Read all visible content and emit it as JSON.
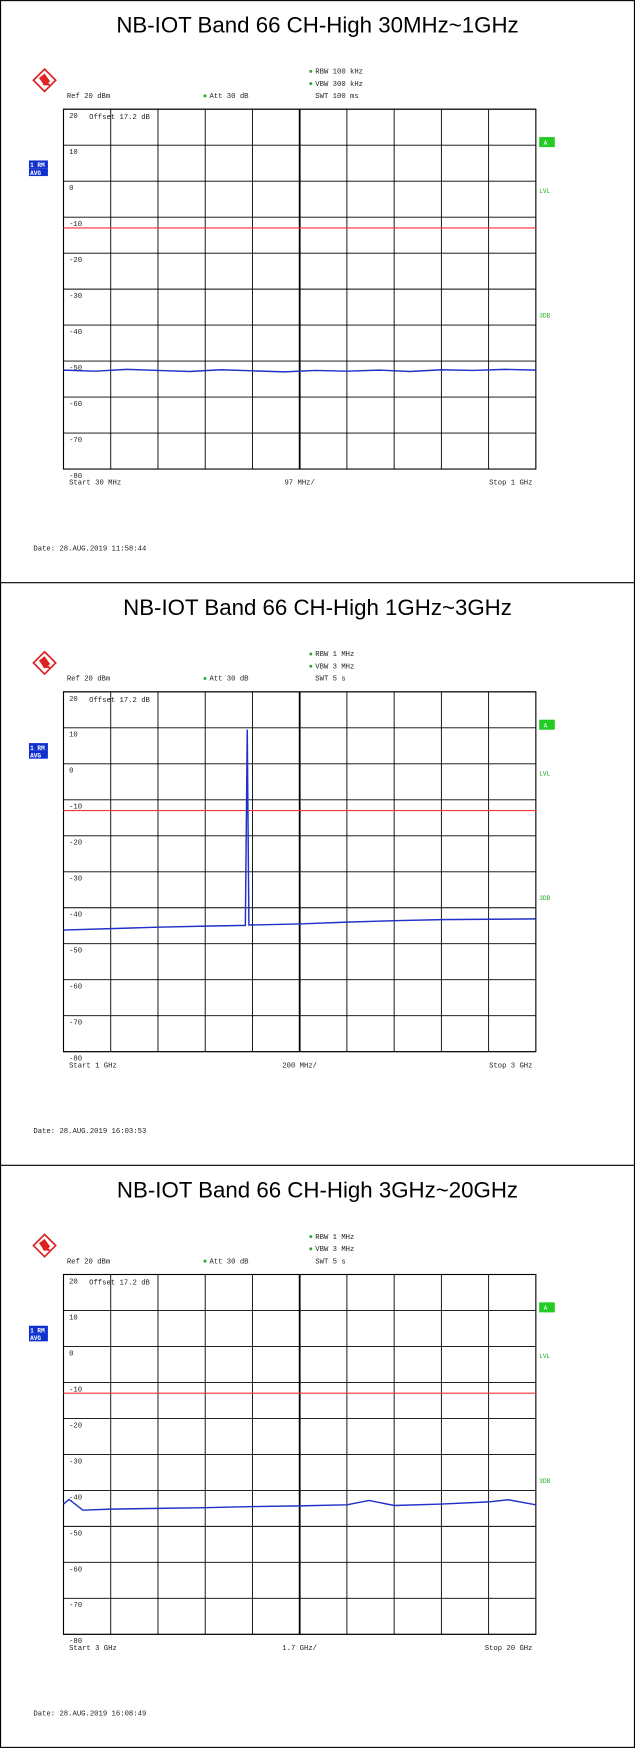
{
  "chart_data": [
    {
      "type": "line",
      "title": "NB-IOT Band 66 CH-High 30MHz~1GHz",
      "rbw": "RBW 100 kHz",
      "vbw": "VBW 300 kHz",
      "swt": "SWT 100 ms",
      "ref": "Ref  20 dBm",
      "att": "Att  30 dB",
      "offset": "Offset  17.2 dB",
      "trace_mode": [
        "1 RM",
        "AVG"
      ],
      "side_labels": [
        "A",
        "LVL",
        "3DB"
      ],
      "start_label": "Start  30 MHz",
      "span_label": "97 MHz/",
      "stop_label": "Stop  1 GHz",
      "date": "Date: 28.AUG.2019  11:58:44",
      "xlim": [
        30,
        1000
      ],
      "ylim": [
        -80,
        20
      ],
      "yticks": [
        20,
        10,
        0,
        -10,
        -20,
        -30,
        -40,
        -50,
        -60,
        -70,
        -80
      ],
      "limit_line": {
        "value": -13,
        "color": "#ff3333"
      },
      "x": [
        30,
        95,
        160,
        224,
        289,
        354,
        418,
        483,
        548,
        612,
        677,
        742,
        806,
        871,
        936,
        1000
      ],
      "series": [
        {
          "color": "#2030c8",
          "values": [
            -52.5,
            -52.8,
            -52.3,
            -52.6,
            -52.9,
            -52.4,
            -52.7,
            -53.0,
            -52.6,
            -52.8,
            -52.5,
            -52.9,
            -52.4,
            -52.6,
            -52.3,
            -52.5
          ]
        }
      ]
    },
    {
      "type": "line",
      "title": "NB-IOT Band 66 CH-High 1GHz~3GHz",
      "rbw": "RBW 1 MHz",
      "vbw": "VBW 3 MHz",
      "swt": "SWT 5 s",
      "ref": "Ref  20 dBm",
      "att": "Att  30 dB",
      "offset": "Offset  17.2 dB",
      "trace_mode": [
        "1 RM",
        "AVG"
      ],
      "side_labels": [
        "A",
        "LVL",
        "3DB"
      ],
      "start_label": "Start  1 GHz",
      "span_label": "200 MHz/",
      "stop_label": "Stop  3 GHz",
      "date": "Date: 28.AUG.2019  16:03:53",
      "xlim": [
        1000,
        3000
      ],
      "ylim": [
        -80,
        20
      ],
      "yticks": [
        20,
        10,
        0,
        -10,
        -20,
        -30,
        -40,
        -50,
        -60,
        -70,
        -80
      ],
      "limit_line": {
        "value": -13,
        "color": "#ff3333"
      },
      "x": [
        1000,
        1200,
        1400,
        1600,
        1770,
        1778,
        1785,
        2000,
        2200,
        2400,
        2600,
        2800,
        3000
      ],
      "series": [
        {
          "color": "#2030c8",
          "values": [
            -46.2,
            -45.8,
            -45.4,
            -45.1,
            -44.9,
            9.5,
            -44.8,
            -44.5,
            -44.0,
            -43.6,
            -43.3,
            -43.2,
            -43.1
          ]
        }
      ]
    },
    {
      "type": "line",
      "title": "NB-IOT Band 66 CH-High 3GHz~20GHz",
      "rbw": "RBW 1 MHz",
      "vbw": "VBW 3 MHz",
      "swt": "SWT 5 s",
      "ref": "Ref  20 dBm",
      "att": "Att  30 dB",
      "offset": "Offset  17.2 dB",
      "trace_mode": [
        "1 RM",
        "AVG"
      ],
      "side_labels": [
        "A",
        "LVL",
        "3DB"
      ],
      "start_label": "Start  3 GHz",
      "span_label": "1.7 GHz/",
      "stop_label": "Stop  20 GHz",
      "date": "Date: 28.AUG.2019  16:08:49",
      "xlim": [
        3000,
        20000
      ],
      "ylim": [
        -80,
        20
      ],
      "yticks": [
        20,
        10,
        0,
        -10,
        -20,
        -30,
        -40,
        -50,
        -60,
        -70,
        -80
      ],
      "limit_line": {
        "value": -13,
        "color": "#ff3333"
      },
      "x": [
        3000,
        3200,
        3700,
        4700,
        6400,
        8100,
        9800,
        11500,
        13200,
        14000,
        14900,
        16600,
        18300,
        19000,
        20000
      ],
      "series": [
        {
          "color": "#2030c8",
          "values": [
            -43.8,
            -42.5,
            -45.5,
            -45.2,
            -45.0,
            -44.8,
            -44.5,
            -44.3,
            -44.0,
            -42.8,
            -44.2,
            -43.8,
            -43.2,
            -42.6,
            -44.0
          ]
        }
      ]
    }
  ]
}
